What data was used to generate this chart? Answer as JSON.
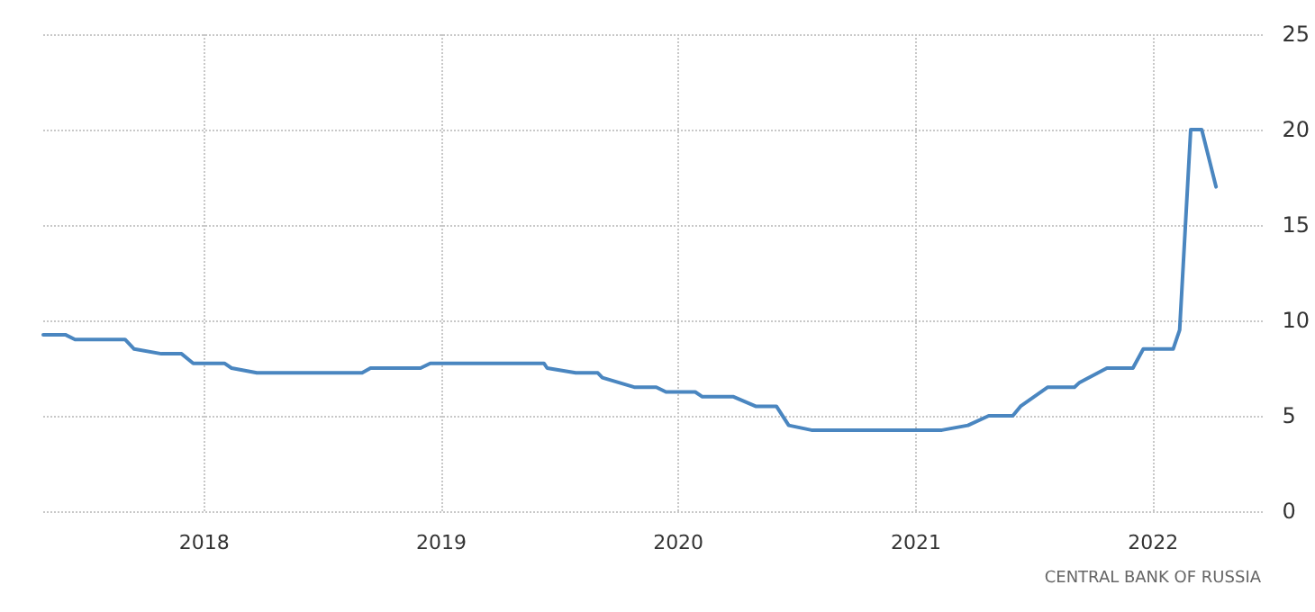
{
  "chart_data": {
    "type": "line",
    "annotations": [
      "CENTRAL BANK OF RUSSIA"
    ],
    "x": [
      "2017-04-28",
      "2017-06-01",
      "2017-06-16",
      "2017-09-01",
      "2017-09-15",
      "2017-10-27",
      "2017-11-27",
      "2017-12-15",
      "2018-02-01",
      "2018-02-12",
      "2018-03-23",
      "2018-09-01",
      "2018-09-14",
      "2018-11-30",
      "2018-12-15",
      "2019-06-08",
      "2019-06-13",
      "2019-07-27",
      "2019-08-30",
      "2019-09-06",
      "2019-10-25",
      "2019-11-28",
      "2019-12-13",
      "2020-01-27",
      "2020-02-07",
      "2020-03-26",
      "2020-04-29",
      "2020-05-31",
      "2020-06-19",
      "2020-07-24",
      "2021-02-10",
      "2021-03-22",
      "2021-04-23",
      "2021-05-30",
      "2021-06-11",
      "2021-07-23",
      "2021-09-02",
      "2021-09-10",
      "2021-10-22",
      "2021-12-01",
      "2021-12-17",
      "2022-02-01",
      "2022-02-11",
      "2022-02-28",
      "2022-03-17",
      "2022-04-08"
    ],
    "series": [
      {
        "color": "#4a86c0",
        "values": [
          9.25,
          9.25,
          9,
          9,
          8.5,
          8.25,
          8.25,
          7.75,
          7.75,
          7.5,
          7.25,
          7.25,
          7.5,
          7.5,
          7.75,
          7.75,
          7.5,
          7.25,
          7.25,
          7,
          6.5,
          6.5,
          6.25,
          6.25,
          6,
          6,
          5.5,
          5.5,
          4.5,
          4.25,
          4.25,
          4.5,
          5,
          5,
          5.5,
          6.5,
          6.5,
          6.75,
          7.5,
          7.5,
          8.5,
          8.5,
          9.5,
          20,
          20,
          17
        ]
      }
    ],
    "xlim": [
      "2017-04-28",
      "2022-06-21"
    ],
    "xticks": [
      "2018",
      "2019",
      "2020",
      "2021",
      "2022"
    ],
    "ylim": [
      0,
      25
    ],
    "yticks": [
      0,
      5,
      10,
      15,
      20,
      25
    ],
    "grid": true,
    "marker": "none",
    "line_style": "solid"
  }
}
